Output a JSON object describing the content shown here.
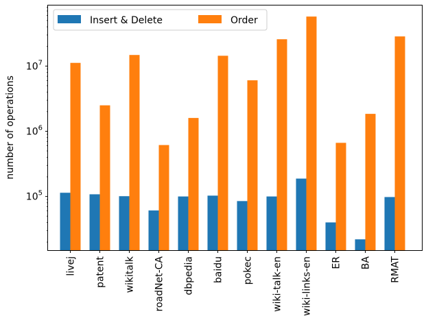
{
  "chart_data": {
    "type": "bar",
    "title": "",
    "xlabel": "",
    "ylabel": "number of operations",
    "yscale": "log",
    "ylim": [
      15000,
      85000000
    ],
    "categories": [
      "livej",
      "patent",
      "wikitalk",
      "roadNet-CA",
      "dbpedia",
      "baidu",
      "pokec",
      "wiki-talk-en",
      "wiki-links-en",
      "ER",
      "BA",
      "RMAT"
    ],
    "series": [
      {
        "name": "Insert & Delete",
        "color": "#1f77b4",
        "values": [
          114000,
          108000,
          101000,
          61000,
          100000,
          103000,
          85000,
          100000,
          188000,
          40000,
          22000,
          98000
        ]
      },
      {
        "name": "Order",
        "color": "#ff7f0e",
        "values": [
          11200000,
          2500000,
          14800000,
          615000,
          1600000,
          14400000,
          6050000,
          25800000,
          57500000,
          665000,
          1850000,
          28500000
        ]
      }
    ],
    "y_ticks": [
      {
        "value": 100000,
        "base": "10",
        "exp": "5"
      },
      {
        "value": 1000000,
        "base": "10",
        "exp": "6"
      },
      {
        "value": 10000000,
        "base": "10",
        "exp": "7"
      }
    ],
    "legend": {
      "placement": "top-left",
      "columns": 2
    },
    "grid": false
  }
}
